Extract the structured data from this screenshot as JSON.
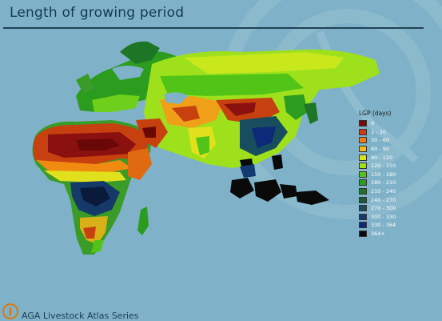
{
  "header": {
    "title": "Length of growing period"
  },
  "legend": {
    "title": "LGP (days)",
    "items": [
      {
        "label": "0",
        "color": "#7a0a0a"
      },
      {
        "label": "1 - 30",
        "color": "#d23a12"
      },
      {
        "label": "30 - 60",
        "color": "#f07a10"
      },
      {
        "label": "60 - 90",
        "color": "#f6b81c"
      },
      {
        "label": "90 - 120",
        "color": "#d8e41c"
      },
      {
        "label": "120 - 150",
        "color": "#9ee01c"
      },
      {
        "label": "150 - 180",
        "color": "#52c418"
      },
      {
        "label": "180 - 210",
        "color": "#2c9c1e"
      },
      {
        "label": "210 - 240",
        "color": "#1d7626"
      },
      {
        "label": "240 - 270",
        "color": "#1a5a3c"
      },
      {
        "label": "270 - 300",
        "color": "#174d5e"
      },
      {
        "label": "300 - 330",
        "color": "#123a70"
      },
      {
        "label": "330 - 364",
        "color": "#0c2a78"
      },
      {
        "label": "364+",
        "color": "#0a0a0a"
      }
    ]
  },
  "footer": {
    "text": "AGA Livestock Atlas Series",
    "logo": "fao-logo-icon"
  }
}
